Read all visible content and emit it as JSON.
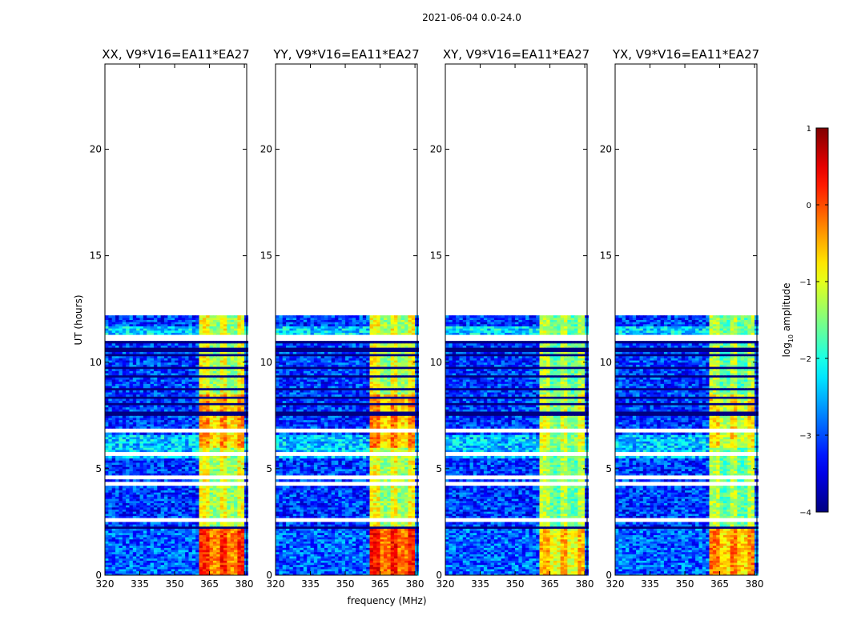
{
  "figure": {
    "suptitle": "2021-06-04 0.0-24.0",
    "xlabel": "frequency (MHz)",
    "ylabel": "UT (hours)"
  },
  "chart_data": [
    {
      "type": "heatmap",
      "title": "XX, V9*V16=EA11*EA27",
      "xlim": [
        320,
        381
      ],
      "ylim": [
        0,
        24
      ],
      "xticks": [
        320,
        335,
        350,
        365,
        380
      ],
      "yticks": [
        0,
        5,
        10,
        15,
        20
      ],
      "data_extent_hours": [
        0,
        12.1
      ],
      "rfi_band_mhz": [
        361,
        380
      ],
      "band_peak_log10": 0.6
    },
    {
      "type": "heatmap",
      "title": "YY, V9*V16=EA11*EA27",
      "xlim": [
        320,
        381
      ],
      "ylim": [
        0,
        24
      ],
      "xticks": [
        320,
        335,
        350,
        365,
        380
      ],
      "yticks": [
        0,
        5,
        10,
        15,
        20
      ],
      "data_extent_hours": [
        0,
        12.1
      ],
      "rfi_band_mhz": [
        361,
        380
      ],
      "band_peak_log10": 0.7
    },
    {
      "type": "heatmap",
      "title": "XY, V9*V16=EA11*EA27",
      "xlim": [
        320,
        381
      ],
      "ylim": [
        0,
        24
      ],
      "xticks": [
        320,
        335,
        350,
        365,
        380
      ],
      "yticks": [
        0,
        5,
        10,
        15,
        20
      ],
      "data_extent_hours": [
        0,
        12.1
      ],
      "rfi_band_mhz": [
        361,
        380
      ],
      "band_peak_log10": 0.2
    },
    {
      "type": "heatmap",
      "title": "YX, V9*V16=EA11*EA27",
      "xlim": [
        320,
        381
      ],
      "ylim": [
        0,
        24
      ],
      "xticks": [
        320,
        335,
        350,
        365,
        380
      ],
      "yticks": [
        0,
        5,
        10,
        15,
        20
      ],
      "data_extent_hours": [
        0,
        12.1
      ],
      "rfi_band_mhz": [
        361,
        380
      ],
      "band_peak_log10": 0.5
    }
  ],
  "colorbar": {
    "label": "log",
    "label_sub": "10",
    "label_suffix": " amplitude",
    "range": [
      -4,
      1
    ],
    "ticks": [
      1,
      0,
      -1,
      -2,
      -3,
      -4
    ],
    "colormap": "jet"
  },
  "colors": {
    "axis": "#000000",
    "background": "#ffffff",
    "blank_row": "#ffffff",
    "flag_row": "#000000"
  }
}
